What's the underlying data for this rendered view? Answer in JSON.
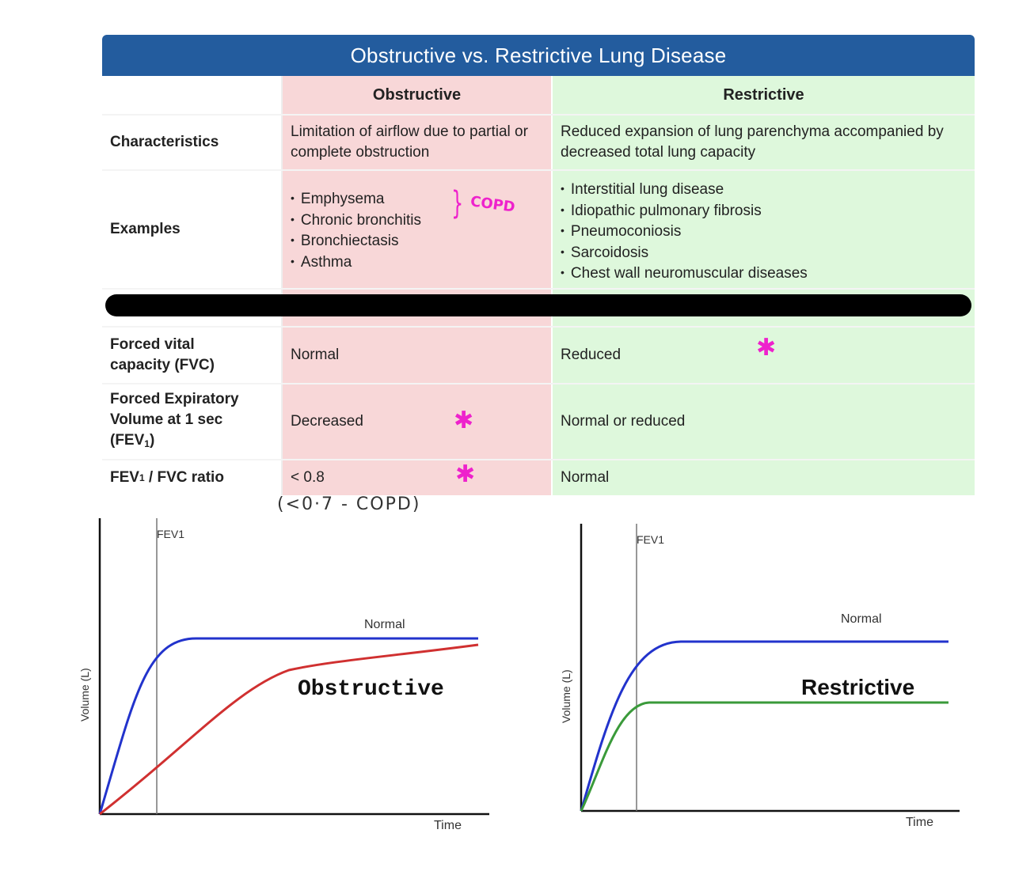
{
  "table": {
    "title": "Obstructive vs. Restrictive Lung Disease",
    "headers": [
      "",
      "Obstructive",
      "Restrictive"
    ],
    "rows": {
      "characteristics": {
        "label": "Characteristics",
        "obstructive": "Limitation of airflow due to partial or complete obstruction",
        "restrictive": "Reduced expansion of lung parenchyma accompanied by decreased total lung capacity"
      },
      "examples": {
        "label": "Examples",
        "obstructive": [
          "Emphysema",
          "Chronic bronchitis",
          "Bronchiectasis",
          "Asthma"
        ],
        "restrictive": [
          "Interstitial lung disease",
          "Idiopathic pulmonary fibrosis",
          "Pneumoconiosis",
          "Sarcoidosis",
          "Chest wall neuromuscular diseases"
        ]
      },
      "fvc": {
        "label_line1": "Forced vital",
        "label_line2": "capacity (FVC)",
        "obstructive": "Normal",
        "restrictive": "Reduced"
      },
      "fev1": {
        "label_line1": "Forced Expiratory",
        "label_line2": "Volume at 1 sec",
        "label_line3_prefix": "(FEV",
        "label_line3_sub": "1",
        "label_line3_suffix": ")",
        "obstructive": "Decreased",
        "restrictive": "Normal or reduced"
      },
      "ratio": {
        "label_prefix": "FEV",
        "label_sub": "1",
        "label_suffix": " / FVC ratio",
        "obstructive": "< 0.8",
        "restrictive": "Normal"
      }
    }
  },
  "annotations": {
    "copd_label": "COPD",
    "ratio_note": "(<0·7 - COPD)",
    "asterisk": "✱",
    "color": "#ee22cc"
  },
  "chart_data": [
    {
      "type": "line",
      "xlabel": "Time",
      "ylabel": "Volume (L)",
      "vline_label": "FEV1",
      "annotation": "Obstructive",
      "series": [
        {
          "name": "Normal",
          "color": "#2233cc"
        },
        {
          "name": "",
          "color": "#d03030"
        }
      ]
    },
    {
      "type": "line",
      "xlabel": "Time",
      "ylabel": "Volume (L)",
      "vline_label": "FEV1",
      "annotation": "Restrictive",
      "series": [
        {
          "name": "Normal",
          "color": "#2233cc"
        },
        {
          "name": "",
          "color": "#3a9a3a"
        }
      ]
    }
  ]
}
